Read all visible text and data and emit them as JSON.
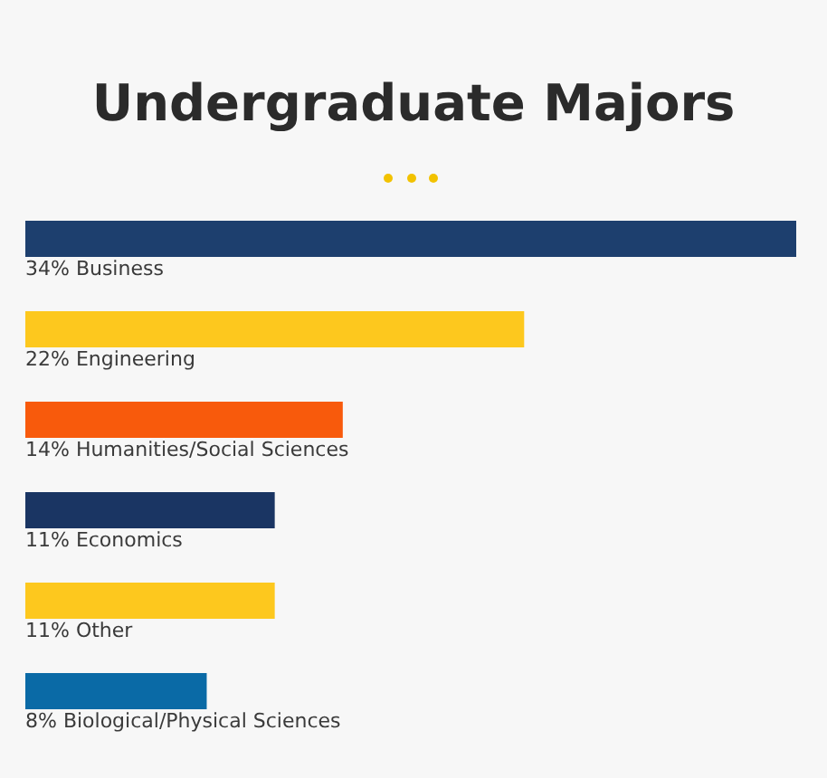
{
  "chart_data": {
    "type": "bar",
    "orientation": "horizontal",
    "title": "Undergraduate Majors",
    "categories": [
      "Business",
      "Engineering",
      "Humanities/Social Sciences",
      "Economics",
      "Other",
      "Biological/Physical Sciences"
    ],
    "values": [
      34,
      22,
      14,
      11,
      11,
      8
    ],
    "value_labels": [
      "34%",
      "22%",
      "14%",
      "11%",
      "11%",
      "8%"
    ],
    "colors": [
      "#1d3f6e",
      "#fdc81e",
      "#f85a0c",
      "#1a3563",
      "#fdc81e",
      "#0a6aa6"
    ]
  }
}
